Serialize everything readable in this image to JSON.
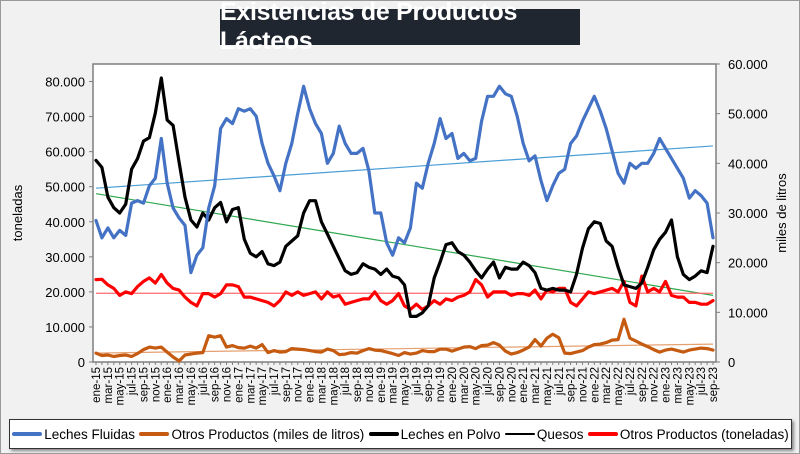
{
  "chart_data": {
    "type": "line",
    "title": "Existencias de Productos Lácteos",
    "ylabel_left": "toneladas",
    "ylabel_right": "miles de litros",
    "ylim_left": [
      0,
      85000
    ],
    "ylim_right": [
      0,
      60000
    ],
    "yticks_left": [
      "0",
      "10.000",
      "20.000",
      "30.000",
      "40.000",
      "50.000",
      "60.000",
      "70.000",
      "80.000"
    ],
    "yticks_left_values": [
      0,
      10000,
      20000,
      30000,
      40000,
      50000,
      60000,
      70000,
      80000
    ],
    "yticks_right": [
      "0",
      "10.000",
      "20.000",
      "30.000",
      "40.000",
      "50.000",
      "60.000"
    ],
    "yticks_right_values": [
      0,
      10000,
      20000,
      30000,
      40000,
      50000,
      60000
    ],
    "xtick_labels": [
      "ene-15",
      "mar-15",
      "may-15",
      "jul-15",
      "sep-15",
      "nov-15",
      "ene-16",
      "mar-16",
      "may-16",
      "jul-16",
      "sep-16",
      "nov-16",
      "ene-17",
      "mar-17",
      "may-17",
      "jul-17",
      "sep-17",
      "nov-17",
      "ene-18",
      "mar-18",
      "may-18",
      "jul-18",
      "sep-18",
      "nov-18",
      "ene-19",
      "mar-19",
      "may-19",
      "jul-19",
      "sep-19",
      "nov-19",
      "ene-20",
      "mar-20",
      "may-20",
      "jul-20",
      "sep-20",
      "nov-20",
      "ene-21",
      "mar-21",
      "may-21",
      "jul-21",
      "sep-21",
      "nov-21",
      "ene-22",
      "mar-22",
      "may-22",
      "jul-22",
      "sep-22",
      "nov-22",
      "ene-23",
      "mar-23",
      "may-23",
      "jul-23",
      "sep-23"
    ],
    "n_months": 105,
    "grid": false,
    "legend_position": "bottom",
    "legend": [
      "Leches Fluidas",
      "Otros Productos (miles de litros)",
      "Leches en Polvo",
      "Quesos",
      "Otros Productos (toneladas)"
    ],
    "series": [
      {
        "name": "Leches Fluidas",
        "axis": "right",
        "color": "#4472c4",
        "values": [
          28500,
          25000,
          27000,
          25000,
          26500,
          25500,
          32000,
          32500,
          32000,
          35500,
          37000,
          45000,
          36000,
          31000,
          29000,
          27500,
          18000,
          21500,
          23000,
          31000,
          35500,
          47000,
          49000,
          48000,
          51000,
          50500,
          51000,
          49500,
          44000,
          40000,
          37500,
          34500,
          40000,
          44000,
          50000,
          55500,
          51000,
          48000,
          46000,
          40000,
          42000,
          47500,
          44000,
          42000,
          42000,
          43000,
          38500,
          30000,
          30000,
          24000,
          21500,
          25000,
          24000,
          27000,
          36000,
          35000,
          40000,
          44000,
          49000,
          45000,
          46000,
          41000,
          42000,
          40500,
          41000,
          48500,
          53500,
          53500,
          55500,
          54000,
          53500,
          49500,
          44000,
          40500,
          41500,
          36500,
          32500,
          35500,
          38000,
          38800,
          44000,
          45500,
          48500,
          51000,
          53500,
          50500,
          47000,
          42500,
          38000,
          36000,
          40000,
          39000,
          40000,
          40000,
          42000,
          45000,
          43000,
          41000,
          39000,
          37000,
          33000,
          34500,
          33500,
          32000,
          25000
        ]
      },
      {
        "name": "Otros Productos (miles de litros)",
        "axis": "right",
        "color": "#c55a11",
        "values": [
          1800,
          1300,
          1400,
          1100,
          1300,
          1400,
          1100,
          1700,
          2500,
          3000,
          2800,
          3000,
          2000,
          1000,
          200,
          1400,
          1600,
          1800,
          1900,
          5300,
          5000,
          5300,
          3000,
          3300,
          2900,
          2800,
          3200,
          2800,
          3500,
          1900,
          2300,
          2000,
          2100,
          2700,
          2600,
          2500,
          2300,
          2100,
          2000,
          2600,
          2300,
          1500,
          1600,
          1900,
          1800,
          2300,
          2700,
          2400,
          2300,
          2000,
          1700,
          1300,
          1900,
          1600,
          1800,
          2300,
          2100,
          2100,
          2600,
          2600,
          2200,
          2600,
          3000,
          3100,
          2700,
          3300,
          3400,
          3900,
          3400,
          2200,
          1600,
          1900,
          2400,
          3000,
          4500,
          3200,
          4800,
          5600,
          4900,
          1800,
          1700,
          2000,
          2300,
          3000,
          3500,
          3600,
          3900,
          4400,
          4500,
          8600,
          4800,
          4200,
          3600,
          3100,
          2500,
          2000,
          2400,
          2600,
          2300,
          2000,
          2400,
          2600,
          2800,
          2700,
          2400
        ]
      },
      {
        "name": "Leches en Polvo",
        "axis": "left",
        "color": "#000000",
        "values": [
          57500,
          55500,
          47000,
          44000,
          42500,
          45000,
          55000,
          58000,
          63000,
          64000,
          71000,
          81000,
          69000,
          67500,
          57000,
          47000,
          40500,
          38500,
          42500,
          40500,
          44000,
          45500,
          40000,
          43500,
          44000,
          35000,
          31000,
          30000,
          31500,
          28000,
          27500,
          28500,
          33000,
          34500,
          36000,
          42500,
          46000,
          46000,
          40000,
          36500,
          33000,
          29500,
          26000,
          25000,
          25500,
          28000,
          27000,
          26500,
          25000,
          26500,
          24500,
          24000,
          22000,
          13000,
          13000,
          14000,
          16000,
          24000,
          28500,
          33500,
          34000,
          31500,
          30500,
          28500,
          26000,
          24000,
          26500,
          28500,
          24000,
          27000,
          26500,
          26500,
          28500,
          27500,
          25500,
          21000,
          20500,
          21000,
          20500,
          20500,
          20000,
          25000,
          32500,
          38000,
          40000,
          39500,
          34500,
          33000,
          27000,
          22000,
          21500,
          21000,
          22500,
          27000,
          32000,
          35000,
          37000,
          40500,
          30000,
          25000,
          23500,
          24500,
          26000,
          25500,
          33000
        ]
      },
      {
        "name": "Quesos",
        "axis": "left",
        "color": "#000000",
        "values": []
      },
      {
        "name": "Otros Productos (toneladas)",
        "axis": "left",
        "color": "#ff0000",
        "values": [
          23500,
          23600,
          22000,
          21000,
          19000,
          20000,
          19500,
          21500,
          23000,
          24000,
          22500,
          25000,
          22500,
          21000,
          20500,
          18500,
          17000,
          16000,
          19500,
          19500,
          18500,
          19500,
          22000,
          22000,
          21500,
          18500,
          18500,
          18000,
          17500,
          17000,
          16000,
          17500,
          20000,
          19000,
          20000,
          19000,
          19500,
          20000,
          18000,
          20000,
          18500,
          19000,
          16500,
          17000,
          17500,
          18000,
          18000,
          20000,
          17500,
          16500,
          17500,
          19500,
          16000,
          15000,
          16500,
          15000,
          16000,
          17500,
          16500,
          18000,
          17500,
          18500,
          19000,
          20000,
          23500,
          22000,
          18500,
          20000,
          20000,
          20000,
          19000,
          19500,
          19500,
          19000,
          20500,
          18000,
          20500,
          20000,
          21000,
          21000,
          17000,
          16000,
          18000,
          20000,
          19500,
          20000,
          20500,
          21000,
          20000,
          23000,
          17000,
          16000,
          24500,
          20000,
          21000,
          20000,
          23000,
          19000,
          18500,
          18500,
          17000,
          17000,
          16500,
          16500,
          17500
        ]
      }
    ],
    "trendlines": [
      {
        "series": "Leches Fluidas",
        "axis": "right",
        "color": "#4a9fd6",
        "start": 35000,
        "end": 43500
      },
      {
        "series": "Otros Productos (miles de litros)",
        "axis": "right",
        "color": "#e5a070",
        "start": 1800,
        "end": 3600
      },
      {
        "series": "Leches en Polvo",
        "axis": "left",
        "color": "#2fa84f",
        "start": 48000,
        "end": 19000
      },
      {
        "series": "Otros Productos (toneladas)",
        "axis": "left",
        "color": "#ff6a6a",
        "start": 19600,
        "end": 19600
      }
    ]
  }
}
